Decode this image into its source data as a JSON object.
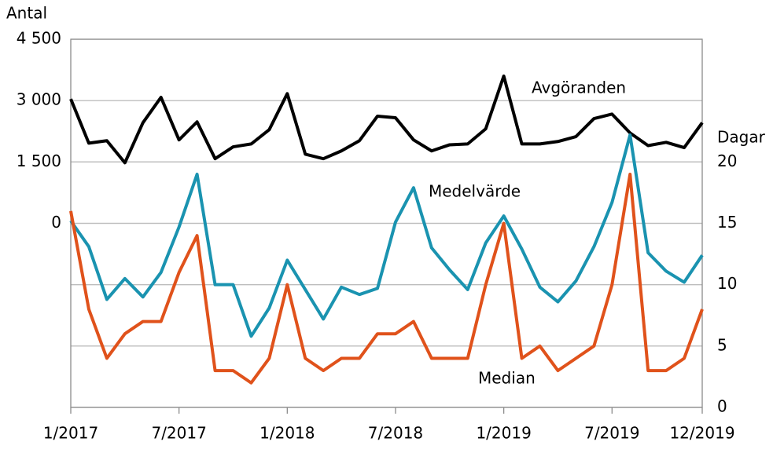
{
  "chart_data": {
    "type": "line",
    "ylabel": "Antal",
    "y2label": "Dagar",
    "categories": [
      "1/2017",
      null,
      null,
      null,
      null,
      null,
      "7/2017",
      null,
      null,
      null,
      null,
      null,
      "1/2018",
      null,
      null,
      null,
      null,
      null,
      "7/2018",
      null,
      null,
      null,
      null,
      null,
      "1/2019",
      null,
      null,
      null,
      null,
      null,
      "7/2019",
      null,
      null,
      null,
      null,
      "12/2019"
    ],
    "ylim": [
      -4500,
      4500
    ],
    "yticks": [
      0,
      {
        "value": 1500,
        "label": "1 500"
      },
      {
        "value": 3000,
        "label": "3 000"
      },
      {
        "value": 4500,
        "label": "4 500"
      }
    ],
    "y2lim": [
      0,
      30
    ],
    "y2ticks": [
      0,
      5,
      10,
      15,
      20
    ],
    "grid": true,
    "series": [
      {
        "name": "Avgöranden",
        "color": "#000000",
        "axis": "y",
        "values": [
          3040,
          1960,
          2020,
          1480,
          2460,
          3080,
          2040,
          2480,
          1580,
          1870,
          1940,
          2290,
          3170,
          1690,
          1580,
          1770,
          2020,
          2620,
          2580,
          2040,
          1770,
          1920,
          1940,
          2310,
          3600,
          1940,
          1940,
          2000,
          2120,
          2560,
          2670,
          2210,
          1900,
          1980,
          1850,
          2460
        ]
      },
      {
        "name": "Medelvärde",
        "color": "#1a93b0",
        "axis": "y2",
        "values": [
          15.2,
          13.1,
          8.8,
          10.5,
          9.0,
          11.0,
          14.7,
          19.0,
          10.0,
          10.0,
          5.8,
          8.1,
          12.0,
          9.6,
          7.2,
          9.8,
          9.2,
          9.7,
          15.1,
          17.9,
          13.0,
          11.2,
          9.6,
          13.4,
          15.6,
          12.9,
          9.8,
          8.6,
          10.3,
          13.1,
          16.7,
          22.2,
          12.6,
          11.1,
          10.2,
          12.4
        ]
      },
      {
        "name": "Median",
        "color": "#e0521b",
        "axis": "y2",
        "values": [
          16,
          8,
          4,
          6,
          7,
          7,
          11,
          14,
          3,
          3,
          2,
          4,
          10,
          4,
          3,
          4,
          4,
          6,
          6,
          7,
          4,
          4,
          4,
          10,
          15,
          4,
          5,
          3,
          4,
          5,
          10,
          19,
          3,
          3,
          4,
          8
        ]
      }
    ]
  }
}
